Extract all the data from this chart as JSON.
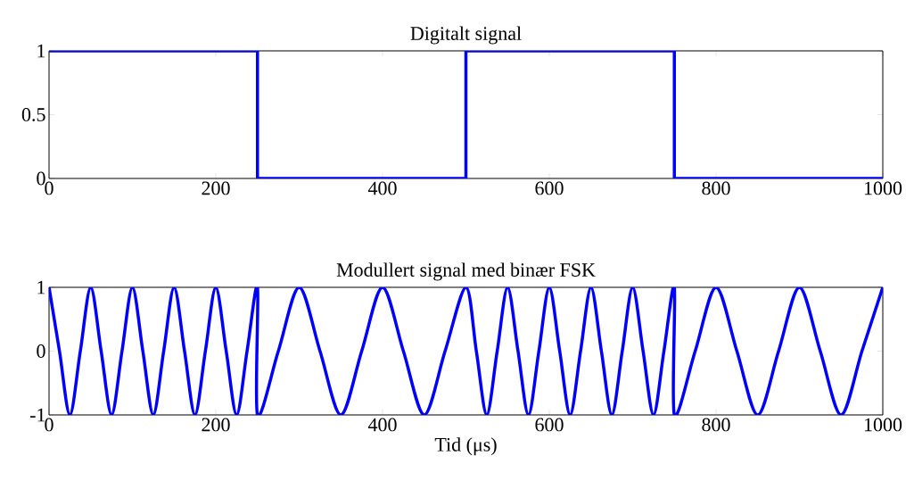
{
  "chart_data": [
    {
      "type": "step",
      "title": "Digitalt signal",
      "x": [
        0,
        250,
        500,
        750,
        1000
      ],
      "values": [
        1,
        0,
        1,
        0,
        0
      ],
      "color": "#0000ff",
      "xlim": [
        0,
        1000
      ],
      "xticks": [
        0,
        200,
        400,
        600,
        800,
        1000
      ],
      "ylim": [
        0,
        1
      ],
      "yticks": [
        0,
        0.5,
        1
      ],
      "marker": "none",
      "line_style": "solid"
    },
    {
      "type": "line",
      "title": "Modullert signal med binær FSK",
      "xlabel": "Tid (μs)",
      "x": [
        0,
        12.5,
        25,
        37.5,
        50,
        62.5,
        75,
        87.5,
        100,
        112.5,
        125,
        137.5,
        150,
        162.5,
        175,
        187.5,
        200,
        212.5,
        225,
        237.5,
        250,
        250,
        275,
        300,
        325,
        350,
        375,
        400,
        425,
        450,
        475,
        500,
        512.5,
        525,
        537.5,
        550,
        562.5,
        575,
        587.5,
        600,
        612.5,
        625,
        637.5,
        650,
        662.5,
        675,
        687.5,
        700,
        712.5,
        725,
        737.5,
        750,
        750,
        775,
        800,
        825,
        850,
        875,
        900,
        925,
        950,
        975,
        1000
      ],
      "values": [
        1,
        0,
        -1,
        0,
        1,
        0,
        -1,
        0,
        1,
        0,
        -1,
        0,
        1,
        0,
        -1,
        0,
        1,
        0,
        -1,
        0,
        1,
        -1,
        0,
        1,
        0,
        -1,
        0,
        1,
        0,
        -1,
        0,
        1,
        0,
        -1,
        0,
        1,
        0,
        -1,
        0,
        1,
        0,
        -1,
        0,
        1,
        0,
        -1,
        0,
        1,
        0,
        -1,
        0,
        1,
        -1,
        0,
        1,
        0,
        -1,
        0,
        1,
        0,
        -1,
        0,
        1
      ],
      "color": "#0000ff",
      "xlim": [
        0,
        1000
      ],
      "xticks": [
        0,
        200,
        400,
        600,
        800,
        1000
      ],
      "ylim": [
        -1,
        1
      ],
      "yticks": [
        -1,
        0,
        1
      ],
      "marker": "none",
      "line_style": "solid"
    }
  ]
}
